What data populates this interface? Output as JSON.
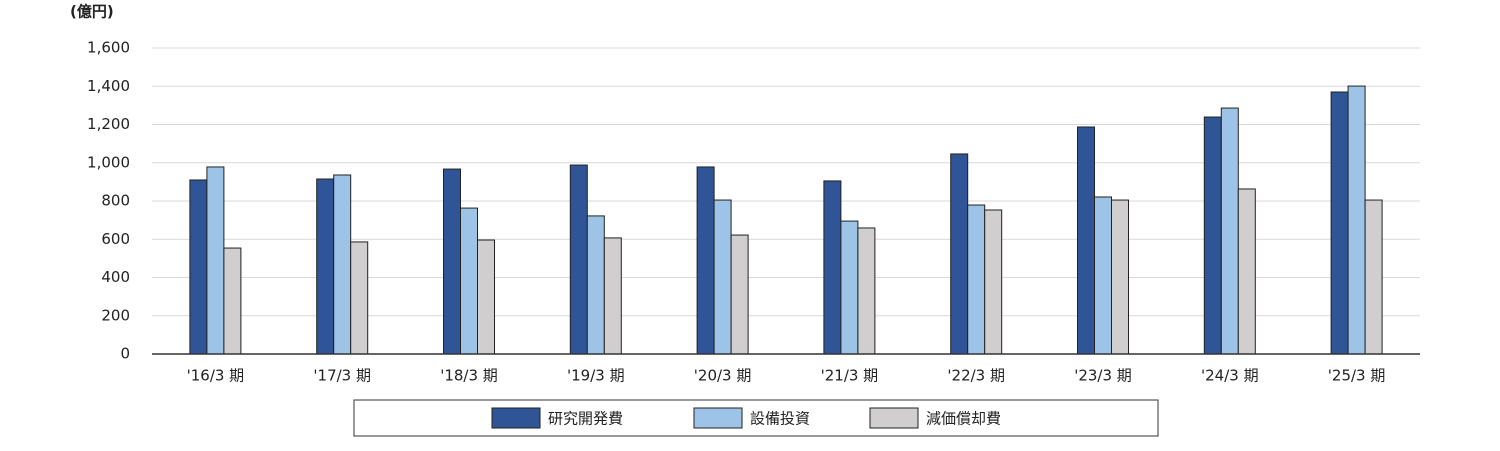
{
  "chart_data": {
    "type": "bar",
    "y_label": "(億円)",
    "categories": [
      "'16/3 期",
      "'17/3 期",
      "'18/3 期",
      "'19/3 期",
      "'20/3 期",
      "'21/3 期",
      "'22/3 期",
      "'23/3 期",
      "'24/3 期",
      "'25/3 期"
    ],
    "series": [
      {
        "name": "研究開発費",
        "color": "#2f5597",
        "values": [
          910,
          915,
          967,
          988,
          978,
          905,
          1046,
          1187,
          1239,
          1370
        ]
      },
      {
        "name": "設備投資",
        "color": "#9dc3e6",
        "values": [
          978,
          936,
          763,
          722,
          805,
          695,
          779,
          821,
          1286,
          1401
        ]
      },
      {
        "name": "減価償却費",
        "color": "#d0cece",
        "values": [
          554,
          586,
          596,
          607,
          622,
          659,
          753,
          805,
          863,
          805
        ]
      }
    ],
    "ylim": [
      0,
      1600
    ],
    "yticks": [
      0,
      200,
      400,
      600,
      800,
      {
        "value": 1000,
        "label": "1,000"
      },
      {
        "value": 1200,
        "label": "1,200"
      },
      {
        "value": 1400,
        "label": "1,400"
      },
      {
        "value": 1600,
        "label": "1,600"
      }
    ],
    "grid": true,
    "legend": "bottom"
  }
}
